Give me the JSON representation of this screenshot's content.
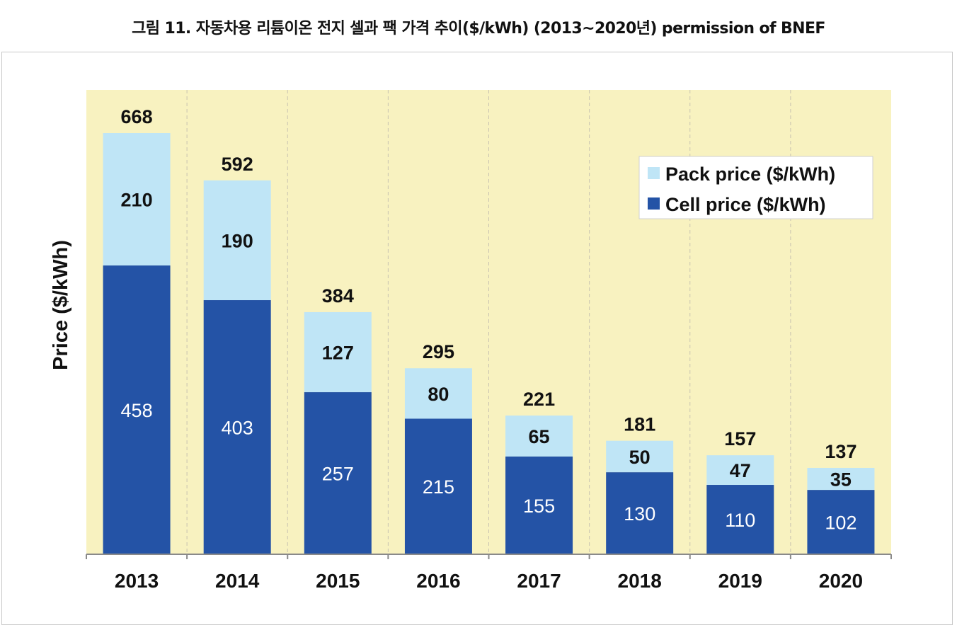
{
  "caption": "그림 11. 자동차용 리튬이온 전지 셀과 팩 가격 추이($/kWh) (2013~2020년) permission of BNEF",
  "colors": {
    "background": "#f8f2c0",
    "pack": "#bfe5f6",
    "cell": "#2453a6"
  },
  "chart_data": {
    "type": "bar",
    "stacked": true,
    "categories": [
      "2013",
      "2014",
      "2015",
      "2016",
      "2017",
      "2018",
      "2019",
      "2020"
    ],
    "series": [
      {
        "name": "Cell price ($/kWh)",
        "values": [
          458,
          403,
          257,
          215,
          155,
          130,
          110,
          102
        ]
      },
      {
        "name": "Pack price ($/kWh)",
        "values": [
          210,
          190,
          127,
          80,
          65,
          50,
          47,
          35
        ]
      }
    ],
    "totals": [
      668,
      592,
      384,
      295,
      221,
      181,
      157,
      137
    ],
    "ylabel": "Price ($/kWh)",
    "xlabel": "",
    "ylim": [
      0,
      800
    ],
    "grid": "vertical dashed separators",
    "legend_position": "top-right"
  }
}
